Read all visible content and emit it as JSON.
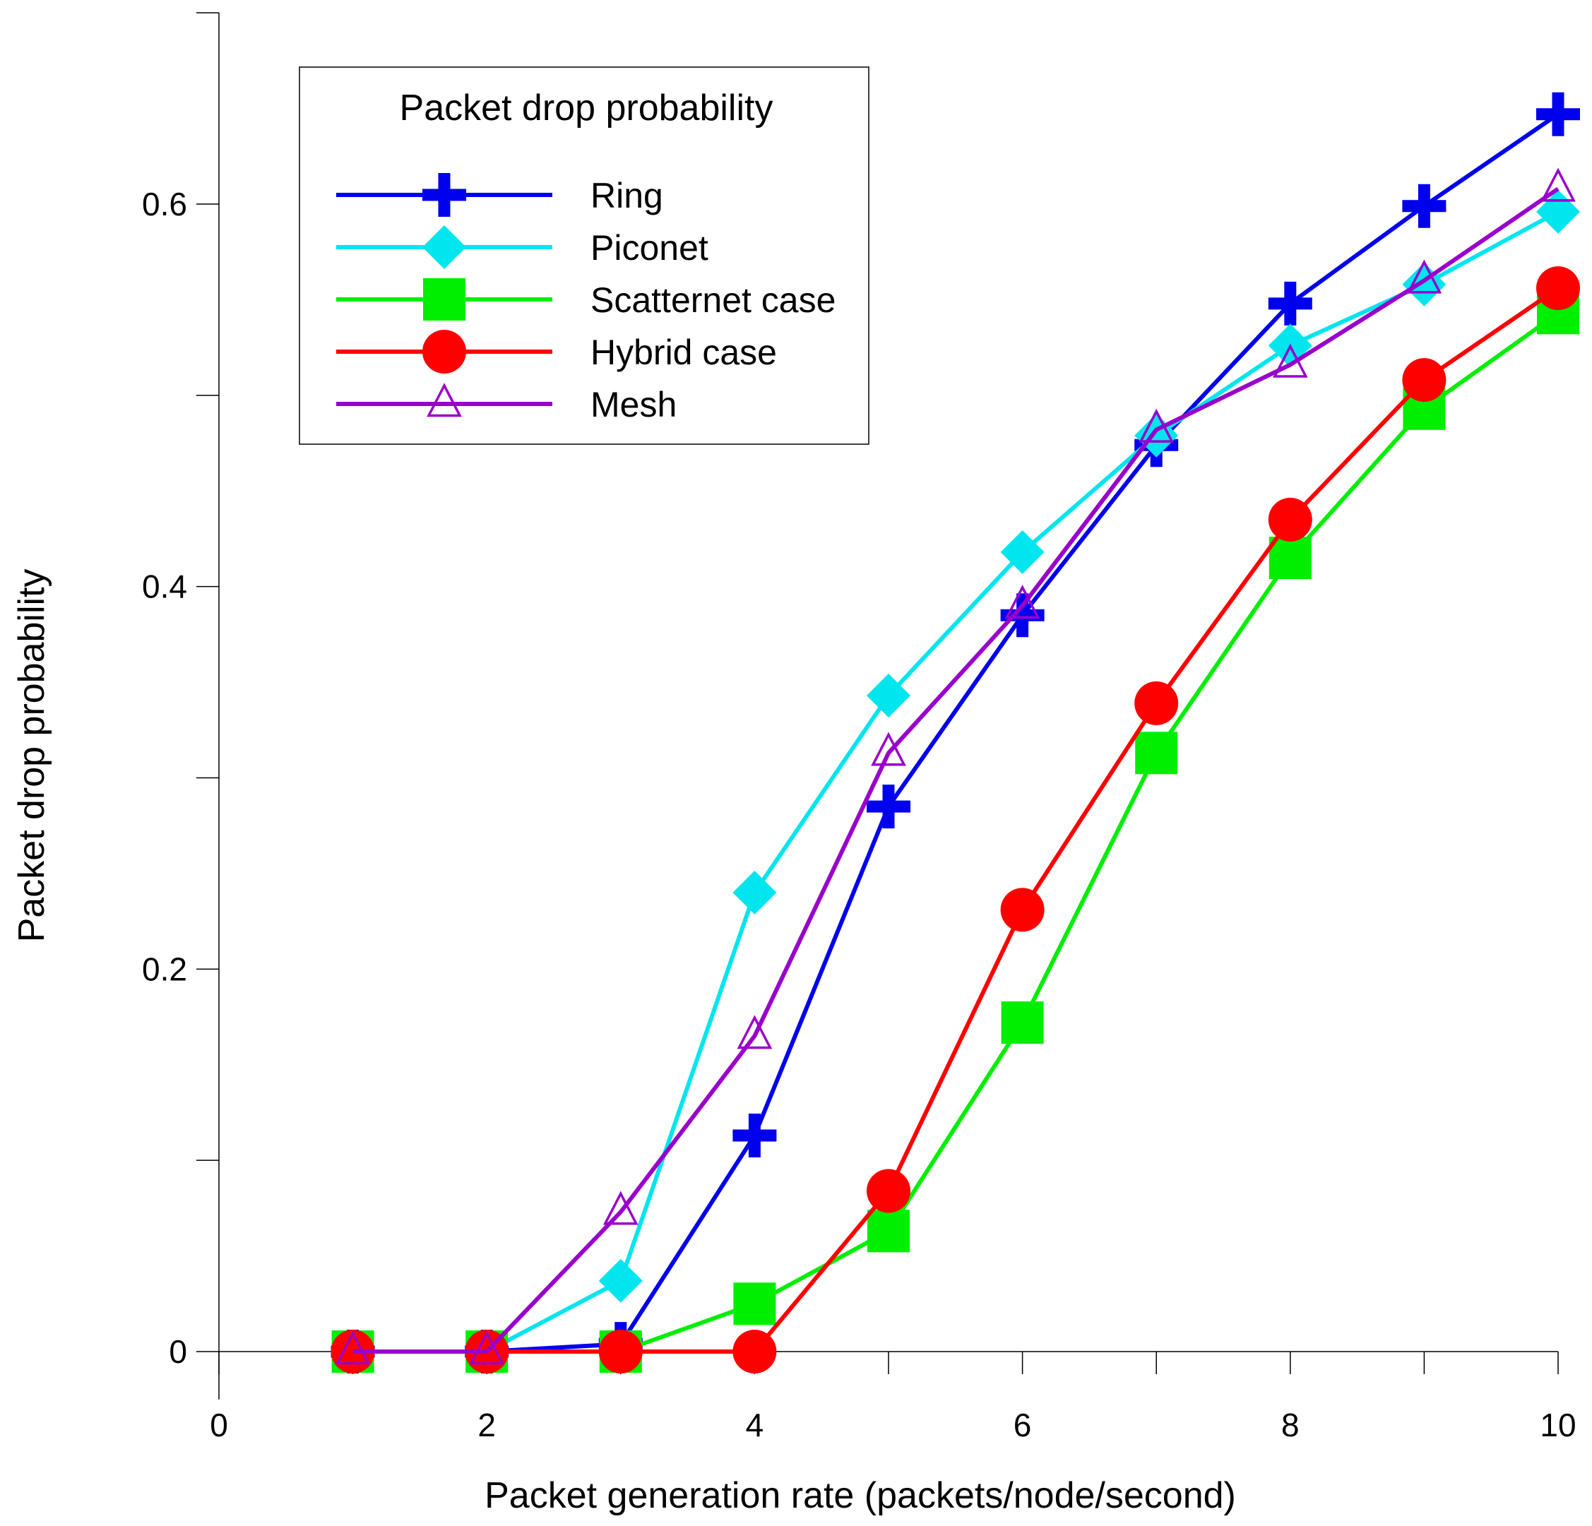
{
  "chart_data": {
    "type": "line",
    "title": "Packet drop probability",
    "xlabel": "Packet generation rate (packets/node/second)",
    "ylabel": "Packet drop probability",
    "xlim": [
      0,
      10
    ],
    "ylim": [
      -0.025,
      0.7
    ],
    "x_ticks": [
      0,
      1,
      2,
      3,
      4,
      5,
      6,
      7,
      8,
      9,
      10
    ],
    "x_tick_labels": [
      "0",
      "",
      "2",
      "",
      "4",
      "",
      "6",
      "",
      "8",
      "",
      "10"
    ],
    "y_ticks": [
      0,
      0.1,
      0.2,
      0.3,
      0.4,
      0.5,
      0.6,
      0.7
    ],
    "y_tick_labels": [
      "0",
      "",
      "0.2",
      "",
      "0.4",
      "",
      "0.6",
      ""
    ],
    "grid": false,
    "legend_title": "Packet drop probability",
    "legend_position": "top-left",
    "series": [
      {
        "name": "Ring",
        "color": "#0000ee",
        "marker": "plus",
        "x": [
          1,
          2,
          3,
          4,
          5,
          6,
          7,
          8,
          9,
          10
        ],
        "values": [
          0,
          0,
          0.004,
          0.113,
          0.285,
          0.385,
          0.474,
          0.548,
          0.599,
          0.647
        ]
      },
      {
        "name": "Piconet",
        "color": "#00e5ee",
        "marker": "diamond",
        "x": [
          1,
          2,
          3,
          4,
          5,
          6,
          7,
          8,
          9,
          10
        ],
        "values": [
          0,
          0,
          0.037,
          0.24,
          0.343,
          0.418,
          0.479,
          0.526,
          0.558,
          0.596
        ]
      },
      {
        "name": "Scatternet case",
        "color": "#00ee00",
        "marker": "square",
        "x": [
          1,
          2,
          3,
          4,
          5,
          6,
          7,
          8,
          9,
          10
        ],
        "values": [
          0,
          0,
          0,
          0.025,
          0.063,
          0.172,
          0.313,
          0.415,
          0.493,
          0.543
        ]
      },
      {
        "name": "Hybrid case",
        "color": "#ff0000",
        "marker": "circle",
        "x": [
          1,
          2,
          3,
          4,
          5,
          6,
          7,
          8,
          9,
          10
        ],
        "values": [
          0,
          0,
          0,
          0,
          0.084,
          0.231,
          0.339,
          0.435,
          0.508,
          0.556
        ]
      },
      {
        "name": "Mesh",
        "color": "#9900cc",
        "marker": "triangle-open",
        "x": [
          1,
          2,
          3,
          4,
          5,
          6,
          7,
          8,
          9,
          10
        ],
        "values": [
          0,
          0,
          0.073,
          0.165,
          0.313,
          0.39,
          0.482,
          0.516,
          0.56,
          0.608
        ]
      }
    ]
  }
}
